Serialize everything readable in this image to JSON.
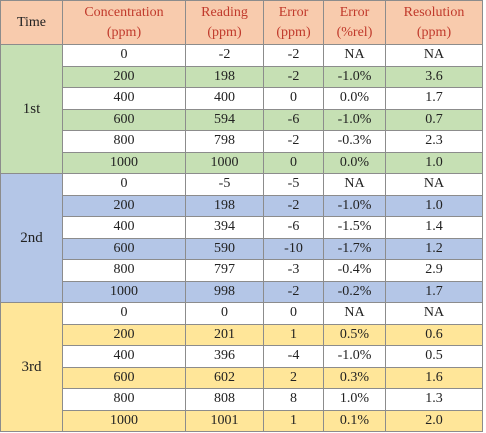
{
  "table": {
    "headers": [
      [
        "Time"
      ],
      [
        "Concentration",
        "(ppm)"
      ],
      [
        "Reading",
        "(ppm)"
      ],
      [
        "Error",
        "(ppm)"
      ],
      [
        "Error",
        "(%rel)"
      ],
      [
        "Resolution",
        "(ppm)"
      ]
    ],
    "groups": [
      {
        "label": "1st",
        "rows": [
          [
            "0",
            "-2",
            "-2",
            "NA",
            "NA"
          ],
          [
            "200",
            "198",
            "-2",
            "-1.0%",
            "3.6"
          ],
          [
            "400",
            "400",
            "0",
            "0.0%",
            "1.7"
          ],
          [
            "600",
            "594",
            "-6",
            "-1.0%",
            "0.7"
          ],
          [
            "800",
            "798",
            "-2",
            "-0.3%",
            "2.3"
          ],
          [
            "1000",
            "1000",
            "0",
            "0.0%",
            "1.0"
          ]
        ]
      },
      {
        "label": "2nd",
        "rows": [
          [
            "0",
            "-5",
            "-5",
            "NA",
            "NA"
          ],
          [
            "200",
            "198",
            "-2",
            "-1.0%",
            "1.0"
          ],
          [
            "400",
            "394",
            "-6",
            "-1.5%",
            "1.4"
          ],
          [
            "600",
            "590",
            "-10",
            "-1.7%",
            "1.2"
          ],
          [
            "800",
            "797",
            "-3",
            "-0.4%",
            "2.9"
          ],
          [
            "1000",
            "998",
            "-2",
            "-0.2%",
            "1.7"
          ]
        ]
      },
      {
        "label": "3rd",
        "rows": [
          [
            "0",
            "0",
            "0",
            "NA",
            "NA"
          ],
          [
            "200",
            "201",
            "1",
            "0.5%",
            "0.6"
          ],
          [
            "400",
            "396",
            "-4",
            "-1.0%",
            "0.5"
          ],
          [
            "600",
            "602",
            "2",
            "0.3%",
            "1.6"
          ],
          [
            "800",
            "808",
            "8",
            "1.0%",
            "1.3"
          ],
          [
            "1000",
            "1001",
            "1",
            "0.1%",
            "2.0"
          ]
        ]
      }
    ]
  }
}
